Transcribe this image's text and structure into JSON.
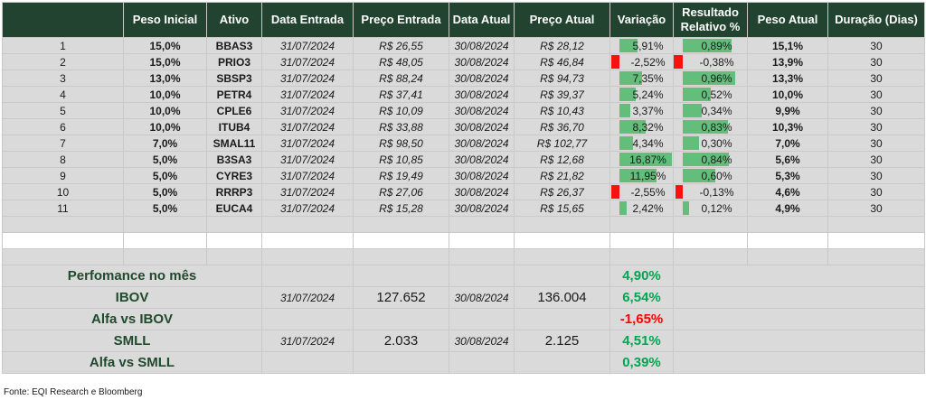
{
  "headers": [
    "",
    "Peso Inicial",
    "Ativo",
    "Data Entrada",
    "Preço Entrada",
    "Data Atual",
    "Preço Atual",
    "Variação",
    "Resultado Relativo %",
    "Peso Atual",
    "Duração (Dias)"
  ],
  "rows": [
    {
      "n": "1",
      "peso_inicial": "15,0%",
      "ativo": "BBAS3",
      "data_entrada": "31/07/2024",
      "preco_entrada": "R$ 26,55",
      "data_atual": "30/08/2024",
      "preco_atual": "R$ 28,12",
      "variacao": "5,91%",
      "variacao_value": 5.91,
      "resultado": "0,89%",
      "resultado_value": 0.89,
      "peso_atual": "15,1%",
      "duracao": "30"
    },
    {
      "n": "2",
      "peso_inicial": "15,0%",
      "ativo": "PRIO3",
      "data_entrada": "31/07/2024",
      "preco_entrada": "R$ 48,05",
      "data_atual": "30/08/2024",
      "preco_atual": "R$ 46,84",
      "variacao": "-2,52%",
      "variacao_value": -2.52,
      "resultado": "-0,38%",
      "resultado_value": -0.38,
      "peso_atual": "13,9%",
      "duracao": "30"
    },
    {
      "n": "3",
      "peso_inicial": "13,0%",
      "ativo": "SBSP3",
      "data_entrada": "31/07/2024",
      "preco_entrada": "R$ 88,24",
      "data_atual": "30/08/2024",
      "preco_atual": "R$ 94,73",
      "variacao": "7,35%",
      "variacao_value": 7.35,
      "resultado": "0,96%",
      "resultado_value": 0.96,
      "peso_atual": "13,3%",
      "duracao": "30"
    },
    {
      "n": "4",
      "peso_inicial": "10,0%",
      "ativo": "PETR4",
      "data_entrada": "31/07/2024",
      "preco_entrada": "R$ 37,41",
      "data_atual": "30/08/2024",
      "preco_atual": "R$ 39,37",
      "variacao": "5,24%",
      "variacao_value": 5.24,
      "resultado": "0,52%",
      "resultado_value": 0.52,
      "peso_atual": "10,0%",
      "duracao": "30"
    },
    {
      "n": "5",
      "peso_inicial": "10,0%",
      "ativo": "CPLE6",
      "data_entrada": "31/07/2024",
      "preco_entrada": "R$ 10,09",
      "data_atual": "30/08/2024",
      "preco_atual": "R$ 10,43",
      "variacao": "3,37%",
      "variacao_value": 3.37,
      "resultado": "0,34%",
      "resultado_value": 0.34,
      "peso_atual": "9,9%",
      "duracao": "30"
    },
    {
      "n": "6",
      "peso_inicial": "10,0%",
      "ativo": "ITUB4",
      "data_entrada": "31/07/2024",
      "preco_entrada": "R$ 33,88",
      "data_atual": "30/08/2024",
      "preco_atual": "R$ 36,70",
      "variacao": "8,32%",
      "variacao_value": 8.32,
      "resultado": "0,83%",
      "resultado_value": 0.83,
      "peso_atual": "10,3%",
      "duracao": "30"
    },
    {
      "n": "7",
      "peso_inicial": "7,0%",
      "ativo": "SMAL11",
      "data_entrada": "31/07/2024",
      "preco_entrada": "R$ 98,50",
      "data_atual": "30/08/2024",
      "preco_atual": "R$ 102,77",
      "variacao": "4,34%",
      "variacao_value": 4.34,
      "resultado": "0,30%",
      "resultado_value": 0.3,
      "peso_atual": "7,0%",
      "duracao": "30"
    },
    {
      "n": "8",
      "peso_inicial": "5,0%",
      "ativo": "B3SA3",
      "data_entrada": "31/07/2024",
      "preco_entrada": "R$ 10,85",
      "data_atual": "30/08/2024",
      "preco_atual": "R$ 12,68",
      "variacao": "16,87%",
      "variacao_value": 16.87,
      "resultado": "0,84%",
      "resultado_value": 0.84,
      "peso_atual": "5,6%",
      "duracao": "30"
    },
    {
      "n": "9",
      "peso_inicial": "5,0%",
      "ativo": "CYRE3",
      "data_entrada": "31/07/2024",
      "preco_entrada": "R$ 19,49",
      "data_atual": "30/08/2024",
      "preco_atual": "R$ 21,82",
      "variacao": "11,95%",
      "variacao_value": 11.95,
      "resultado": "0,60%",
      "resultado_value": 0.6,
      "peso_atual": "5,3%",
      "duracao": "30"
    },
    {
      "n": "10",
      "peso_inicial": "5,0%",
      "ativo": "RRRP3",
      "data_entrada": "31/07/2024",
      "preco_entrada": "R$ 27,06",
      "data_atual": "30/08/2024",
      "preco_atual": "R$ 26,37",
      "variacao": "-2,55%",
      "variacao_value": -2.55,
      "resultado": "-0,13%",
      "resultado_value": -0.13,
      "peso_atual": "4,6%",
      "duracao": "30"
    },
    {
      "n": "11",
      "peso_inicial": "5,0%",
      "ativo": "EUCA4",
      "data_entrada": "31/07/2024",
      "preco_entrada": "R$ 15,28",
      "data_atual": "30/08/2024",
      "preco_atual": "R$ 15,65",
      "variacao": "2,42%",
      "variacao_value": 2.42,
      "resultado": "0,12%",
      "resultado_value": 0.12,
      "peso_atual": "4,9%",
      "duracao": "30"
    }
  ],
  "summary": [
    {
      "label": "Perfomance no mês",
      "data_entrada": "",
      "valor_entrada": "",
      "data_atual": "",
      "valor_atual": "",
      "pct": "4,90%",
      "tone": "green"
    },
    {
      "label": "IBOV",
      "data_entrada": "31/07/2024",
      "valor_entrada": "127.652",
      "data_atual": "30/08/2024",
      "valor_atual": "136.004",
      "pct": "6,54%",
      "tone": "green"
    },
    {
      "label": "Alfa vs IBOV",
      "data_entrada": "",
      "valor_entrada": "",
      "data_atual": "",
      "valor_atual": "",
      "pct": "-1,65%",
      "tone": "red"
    },
    {
      "label": "SMLL",
      "data_entrada": "31/07/2024",
      "valor_entrada": "2.033",
      "data_atual": "30/08/2024",
      "valor_atual": "2.125",
      "pct": "4,51%",
      "tone": "green"
    },
    {
      "label": "Alfa vs SMLL",
      "data_entrada": "",
      "valor_entrada": "",
      "data_atual": "",
      "valor_atual": "",
      "pct": "0,39%",
      "tone": "green"
    }
  ],
  "source": "Fonte: EQI Research e Bloomberg",
  "colors": {
    "header_bg": "#21432f",
    "bar_positive": "#63be7b",
    "bar_negative": "#f8110f",
    "pct_green": "#00a651",
    "pct_red": "#ff0000"
  }
}
